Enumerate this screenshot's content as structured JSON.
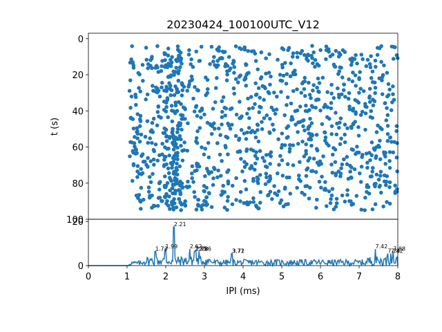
{
  "chart_data": [
    {
      "type": "scatter",
      "title": "20230424_100100UTC_V12",
      "ylabel": "t (s)",
      "xlim": [
        0,
        8
      ],
      "ylim": [
        100,
        -3
      ],
      "y_inverted": true,
      "yticks": [
        "0",
        "20",
        "40",
        "60",
        "80",
        "100"
      ],
      "color": "#1f77b4",
      "point_count_estimate": 1200,
      "x_range_of_points": [
        1.05,
        8.0
      ],
      "y_range_of_points": [
        4,
        95
      ],
      "note_points": "dense uniform scatter of spike times versus IPI"
    },
    {
      "type": "line",
      "xlabel": "IPI (ms)",
      "xlim": [
        0,
        8
      ],
      "ylim": [
        0,
        21
      ],
      "xticks": [
        "0",
        "1",
        "2",
        "3",
        "4",
        "5",
        "6",
        "7",
        "8"
      ],
      "yticks": [
        "0",
        "20"
      ],
      "color": "#1f77b4",
      "peaks": [
        {
          "x": 1.73,
          "y": 6.5,
          "label": "1.73"
        },
        {
          "x": 1.99,
          "y": 7.5,
          "label": "1.99"
        },
        {
          "x": 2.21,
          "y": 17.5,
          "label": "2.21"
        },
        {
          "x": 2.62,
          "y": 7.5,
          "label": "2.62"
        },
        {
          "x": 2.75,
          "y": 6.5,
          "label": "2.75"
        },
        {
          "x": 2.78,
          "y": 6.5,
          "label": "2.78"
        },
        {
          "x": 2.86,
          "y": 6.5,
          "label": "2.86"
        },
        {
          "x": 3.71,
          "y": 5.5,
          "label": "3.71"
        },
        {
          "x": 3.72,
          "y": 5.5,
          "label": "3.72"
        },
        {
          "x": 7.42,
          "y": 7.5,
          "label": "7.42"
        },
        {
          "x": 7.74,
          "y": 5.5,
          "label": "7.74"
        },
        {
          "x": 7.82,
          "y": 5.5,
          "label": "7.82"
        },
        {
          "x": 7.88,
          "y": 6.5,
          "label": "7.88"
        }
      ]
    }
  ]
}
